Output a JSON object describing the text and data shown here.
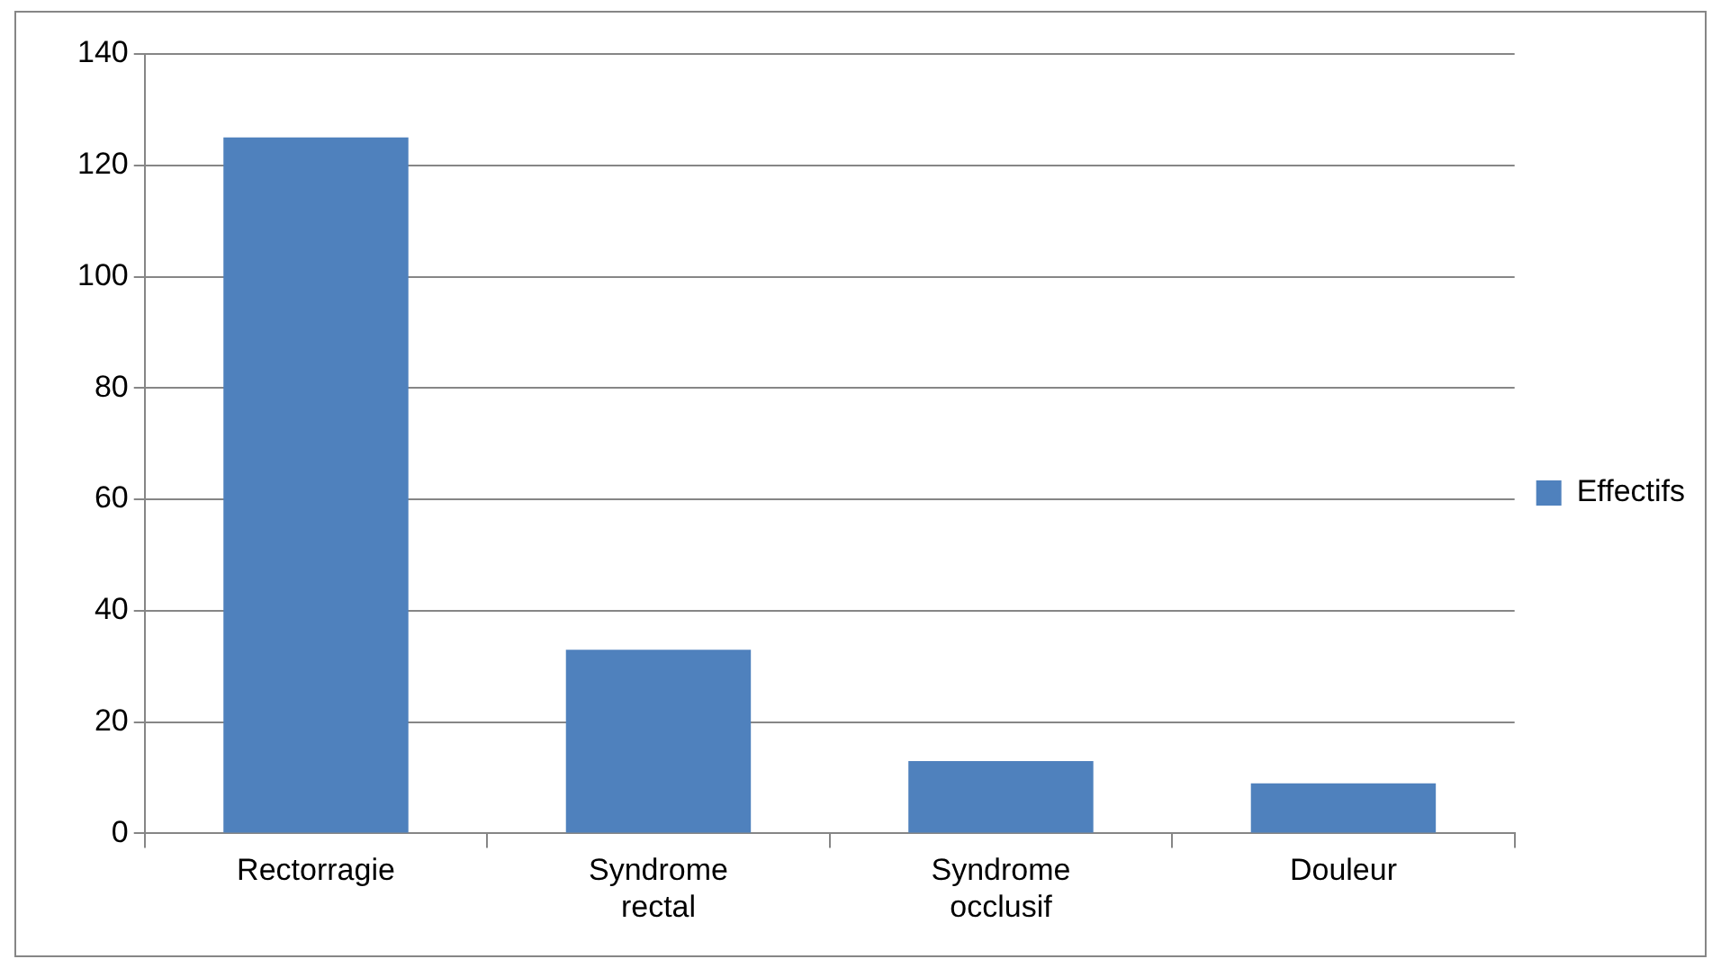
{
  "chart_data": {
    "type": "bar",
    "categories": [
      "Rectorragie",
      "Syndrome rectal",
      "Syndrome occlusif",
      "Douleur"
    ],
    "series": [
      {
        "name": "Effectifs",
        "color": "#4f81bd",
        "values": [
          125,
          33,
          13,
          9
        ]
      }
    ],
    "ylim": [
      0,
      140
    ],
    "yticks": [
      0,
      20,
      40,
      60,
      80,
      100,
      120,
      140
    ],
    "grid": "y",
    "legend": "right"
  }
}
